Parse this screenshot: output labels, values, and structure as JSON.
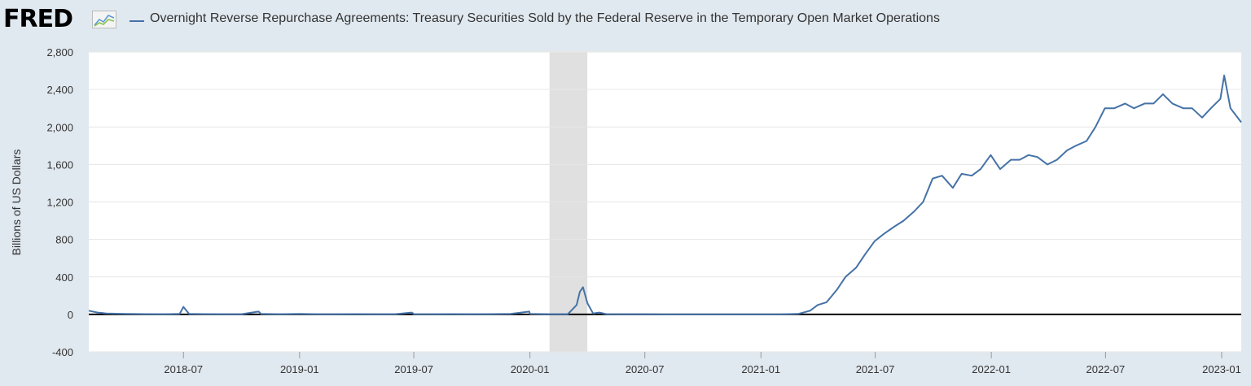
{
  "logo": {
    "text": "FRED",
    "icon": "fred-graph-icon"
  },
  "colors": {
    "series": "#4572a7",
    "background": "#e1e9f0",
    "plot": "#ffffff",
    "recession": "#e0e0e0",
    "grid": "#e6e6e6",
    "zero_line": "#000000"
  },
  "chart_data": {
    "type": "line",
    "title": "",
    "xlabel": "",
    "ylabel": "Billions of US Dollars",
    "ylim": [
      -400,
      2800
    ],
    "yticks": [
      -400,
      0,
      400,
      800,
      1200,
      1600,
      2000,
      2400,
      2800
    ],
    "ytick_labels": [
      "-400",
      "0",
      "400",
      "800",
      "1,200",
      "1,600",
      "2,000",
      "2,400",
      "2,800"
    ],
    "xlim": [
      "2018-02-01",
      "2023-02-01"
    ],
    "xticks": [
      "2018-07",
      "2019-01",
      "2019-07",
      "2020-01",
      "2020-07",
      "2021-01",
      "2021-07",
      "2022-01",
      "2022-07",
      "2023-01"
    ],
    "grid": true,
    "legend": "top-left",
    "recession_shading": [
      {
        "start": "2020-02",
        "end": "2020-04"
      }
    ],
    "series": [
      {
        "name": "Overnight Reverse Repurchase Agreements: Treasury Securities Sold by the Federal Reserve in the Temporary Open Market Operations",
        "x": [
          "2018-02-01",
          "2018-02-15",
          "2018-03-01",
          "2018-04-01",
          "2018-05-01",
          "2018-06-01",
          "2018-06-25",
          "2018-07-01",
          "2018-07-10",
          "2018-08-01",
          "2018-09-01",
          "2018-10-01",
          "2018-10-28",
          "2018-11-01",
          "2018-12-01",
          "2019-01-01",
          "2019-02-01",
          "2019-03-01",
          "2019-04-01",
          "2019-05-01",
          "2019-06-01",
          "2019-06-28",
          "2019-07-01",
          "2019-08-01",
          "2019-09-01",
          "2019-10-01",
          "2019-11-01",
          "2019-12-01",
          "2019-12-31",
          "2020-01-01",
          "2020-02-01",
          "2020-03-01",
          "2020-03-15",
          "2020-03-20",
          "2020-03-25",
          "2020-04-01",
          "2020-04-10",
          "2020-04-20",
          "2020-05-01",
          "2020-06-01",
          "2020-07-01",
          "2020-08-01",
          "2020-09-01",
          "2020-10-01",
          "2020-11-01",
          "2020-12-01",
          "2021-01-01",
          "2021-02-01",
          "2021-03-01",
          "2021-03-20",
          "2021-04-01",
          "2021-04-15",
          "2021-05-01",
          "2021-05-15",
          "2021-06-01",
          "2021-06-15",
          "2021-06-30",
          "2021-07-15",
          "2021-08-01",
          "2021-08-15",
          "2021-09-01",
          "2021-09-15",
          "2021-09-30",
          "2021-10-15",
          "2021-11-01",
          "2021-11-15",
          "2021-12-01",
          "2021-12-15",
          "2021-12-31",
          "2022-01-15",
          "2022-02-01",
          "2022-02-15",
          "2022-03-01",
          "2022-03-15",
          "2022-03-31",
          "2022-04-15",
          "2022-05-01",
          "2022-05-15",
          "2022-06-01",
          "2022-06-15",
          "2022-06-30",
          "2022-07-15",
          "2022-08-01",
          "2022-08-15",
          "2022-09-01",
          "2022-09-15",
          "2022-09-30",
          "2022-10-15",
          "2022-11-01",
          "2022-11-15",
          "2022-12-01",
          "2022-12-15",
          "2022-12-30",
          "2023-01-05",
          "2023-01-15",
          "2023-02-01"
        ],
        "values": [
          40,
          20,
          10,
          5,
          3,
          2,
          5,
          80,
          5,
          3,
          2,
          2,
          30,
          5,
          2,
          5,
          2,
          2,
          3,
          2,
          2,
          20,
          3,
          2,
          3,
          2,
          3,
          5,
          30,
          5,
          2,
          2,
          100,
          240,
          290,
          120,
          10,
          20,
          3,
          2,
          2,
          1,
          1,
          1,
          1,
          1,
          1,
          1,
          5,
          40,
          100,
          130,
          260,
          400,
          500,
          640,
          780,
          860,
          940,
          1000,
          1100,
          1200,
          1450,
          1480,
          1350,
          1500,
          1480,
          1550,
          1700,
          1550,
          1650,
          1650,
          1700,
          1680,
          1600,
          1650,
          1750,
          1800,
          1850,
          2000,
          2200,
          2200,
          2250,
          2200,
          2250,
          2250,
          2350,
          2250,
          2200,
          2200,
          2100,
          2200,
          2300,
          2550,
          2200,
          2050
        ]
      }
    ]
  }
}
